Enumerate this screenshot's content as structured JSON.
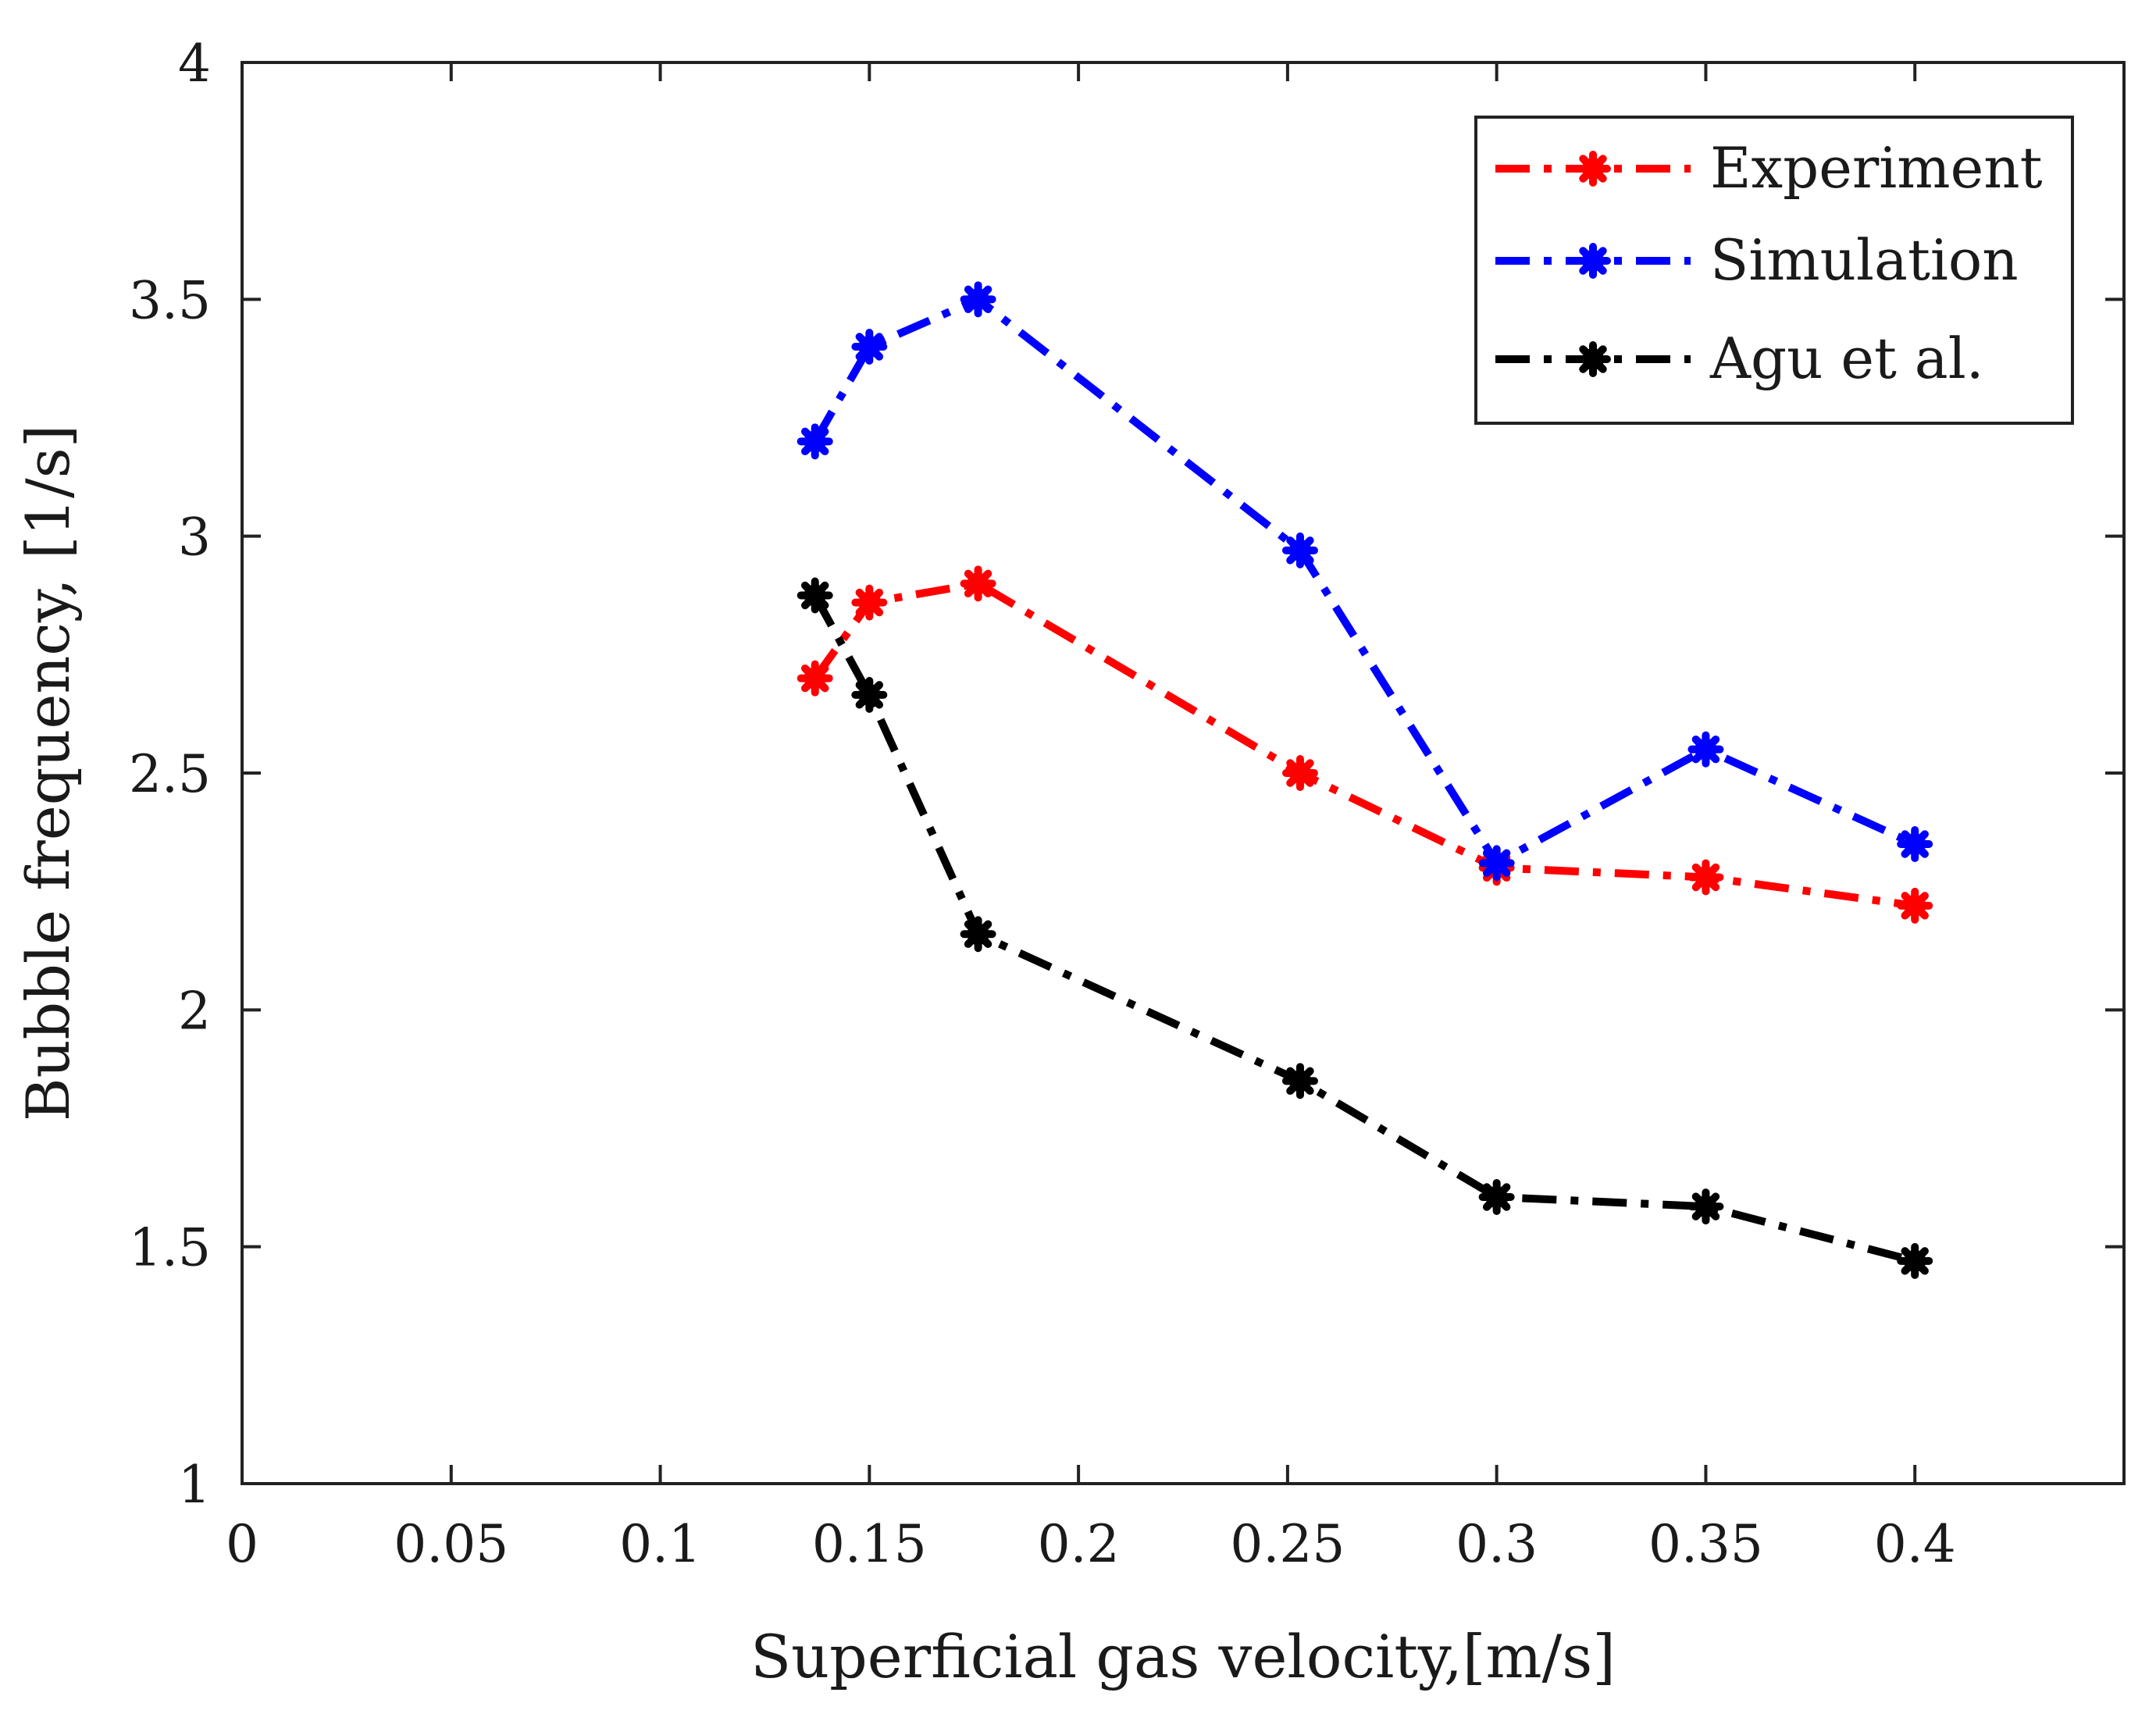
{
  "chart_data": {
    "type": "line",
    "title": "",
    "xlabel": "Superficial gas velocity,[m/s]",
    "ylabel": "Bubble frequency, [1/s]",
    "xlim": [
      0,
      0.45
    ],
    "ylim": [
      1,
      4
    ],
    "grid": false,
    "legend_position": "top-right",
    "x_ticks": [
      0,
      0.05,
      0.1,
      0.15,
      0.2,
      0.25,
      0.3,
      0.35,
      0.4
    ],
    "x_tick_labels": [
      "0",
      "0.05",
      "0.1",
      "0.15",
      "0.2",
      "0.25",
      "0.3",
      "0.35",
      "0.4"
    ],
    "y_ticks": [
      1,
      1.5,
      2,
      2.5,
      3,
      3.5,
      4
    ],
    "y_tick_labels": [
      "1",
      "1.5",
      "2",
      "2.5",
      "3",
      "3.5",
      "4"
    ],
    "x": [
      0.137,
      0.15,
      0.176,
      0.253,
      0.3,
      0.35,
      0.4
    ],
    "series": [
      {
        "name": "Experiment",
        "color": "#ff0000",
        "values": [
          2.7,
          2.86,
          2.9,
          2.5,
          2.3,
          2.28,
          2.22
        ]
      },
      {
        "name": "Simulation",
        "color": "#0000ff",
        "values": [
          3.2,
          3.4,
          3.5,
          2.97,
          2.31,
          2.55,
          2.35
        ]
      },
      {
        "name": "Agu et al.",
        "color": "#000000",
        "values": [
          2.875,
          2.665,
          2.16,
          1.85,
          1.605,
          1.585,
          1.47
        ]
      }
    ]
  }
}
